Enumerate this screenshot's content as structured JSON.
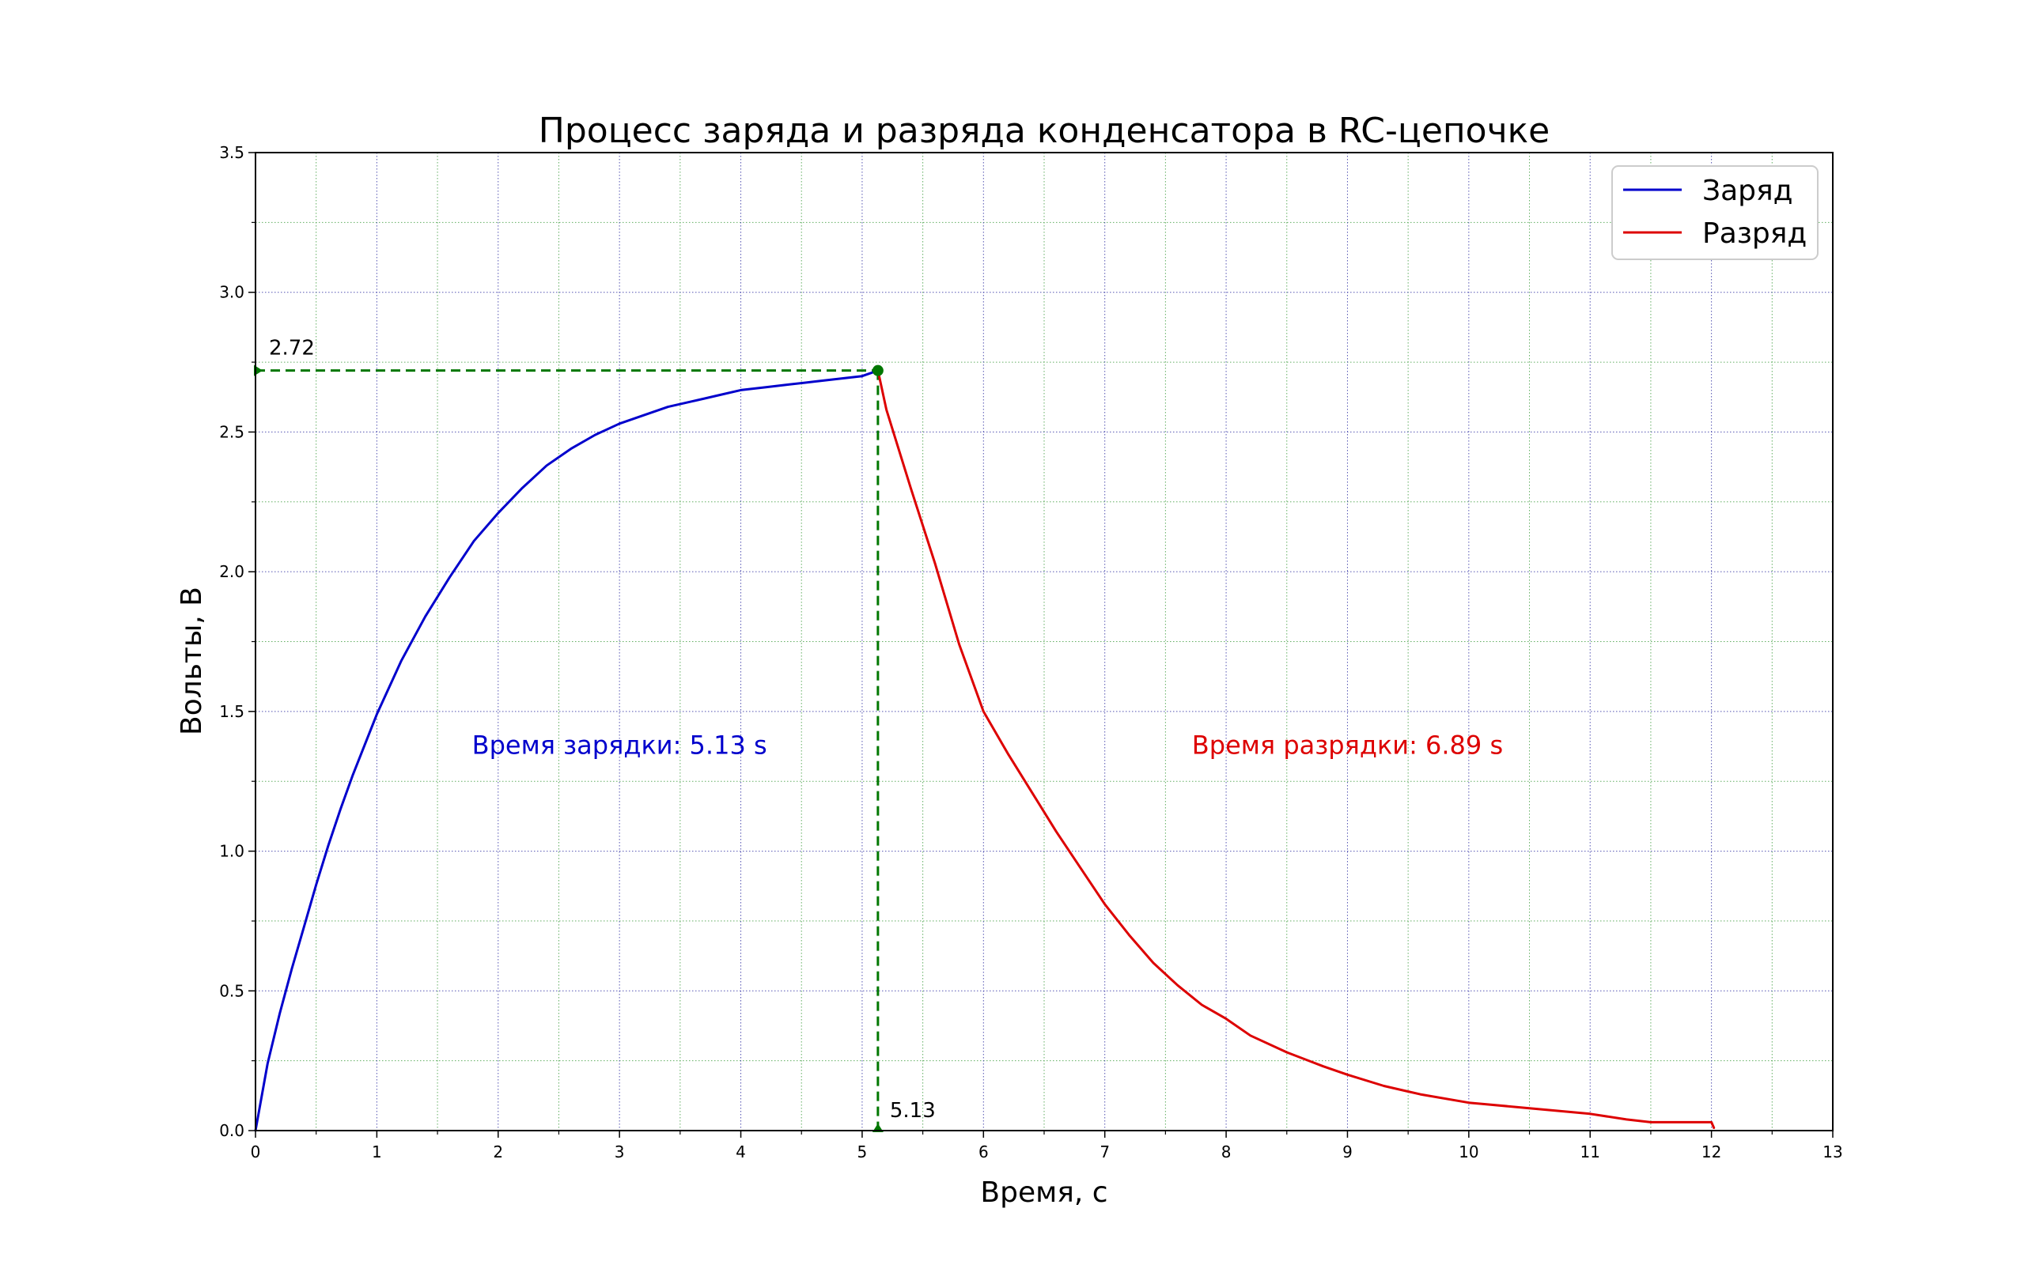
{
  "chart_data": {
    "type": "line",
    "title": "Процесс заряда и разряда конденсатора в RC-цепочке",
    "xlabel": "Время, с",
    "ylabel": "Вольты, В",
    "xlim": [
      0,
      13
    ],
    "ylim": [
      0,
      3.5
    ],
    "x_ticks": [
      0,
      1,
      2,
      3,
      4,
      5,
      6,
      7,
      8,
      9,
      10,
      11,
      12,
      13
    ],
    "x_tick_labels": [
      "0",
      "1",
      "2",
      "3",
      "4",
      "5",
      "6",
      "7",
      "8",
      "9",
      "10",
      "11",
      "12",
      "13"
    ],
    "y_ticks": [
      0.0,
      0.5,
      1.0,
      1.5,
      2.0,
      2.5,
      3.0,
      3.5
    ],
    "y_tick_labels": [
      "0.0",
      "0.5",
      "1.0",
      "1.5",
      "2.0",
      "2.5",
      "3.0",
      "3.5"
    ],
    "grid": "on (major blue dotted, minor green dotted)",
    "legend_position": "top-right",
    "series": [
      {
        "name": "Заряд",
        "color": "#0000cc",
        "x": [
          0,
          0.1,
          0.2,
          0.3,
          0.4,
          0.5,
          0.6,
          0.7,
          0.8,
          0.9,
          1.0,
          1.2,
          1.4,
          1.6,
          1.8,
          2.0,
          2.2,
          2.4,
          2.6,
          2.8,
          3.0,
          3.2,
          3.4,
          3.6,
          3.8,
          4.0,
          4.2,
          4.4,
          4.6,
          4.8,
          5.0,
          5.13
        ],
        "y": [
          0.0,
          0.24,
          0.42,
          0.58,
          0.73,
          0.88,
          1.02,
          1.15,
          1.27,
          1.38,
          1.49,
          1.68,
          1.84,
          1.98,
          2.11,
          2.21,
          2.3,
          2.38,
          2.44,
          2.49,
          2.53,
          2.56,
          2.59,
          2.61,
          2.63,
          2.65,
          2.66,
          2.67,
          2.68,
          2.69,
          2.7,
          2.72
        ]
      },
      {
        "name": "Разряд",
        "color": "#dd0000",
        "x": [
          5.13,
          5.2,
          5.4,
          5.6,
          5.8,
          6.0,
          6.2,
          6.4,
          6.6,
          6.8,
          7.0,
          7.2,
          7.4,
          7.6,
          7.8,
          8.0,
          8.2,
          8.5,
          8.8,
          9.0,
          9.3,
          9.6,
          10.0,
          10.5,
          11.0,
          11.3,
          11.5,
          12.0,
          12.02
        ],
        "y": [
          2.72,
          2.58,
          2.3,
          2.03,
          1.74,
          1.5,
          1.35,
          1.21,
          1.07,
          0.94,
          0.81,
          0.7,
          0.6,
          0.52,
          0.45,
          0.4,
          0.34,
          0.28,
          0.23,
          0.2,
          0.16,
          0.13,
          0.1,
          0.08,
          0.06,
          0.04,
          0.03,
          0.03,
          0.01
        ]
      }
    ],
    "marker": {
      "x": 5.13,
      "y": 2.72,
      "x_label": "5.13",
      "y_label": "2.72",
      "color": "#007700"
    },
    "annotations": {
      "charge_time": {
        "text": "Время зарядки: 5.13 s",
        "x": 3.0,
        "y": 1.38,
        "color": "#0000cc"
      },
      "discharge_time": {
        "text": "Время разрядки: 6.89 s",
        "x": 9.0,
        "y": 1.38,
        "color": "#dd0000"
      }
    }
  }
}
